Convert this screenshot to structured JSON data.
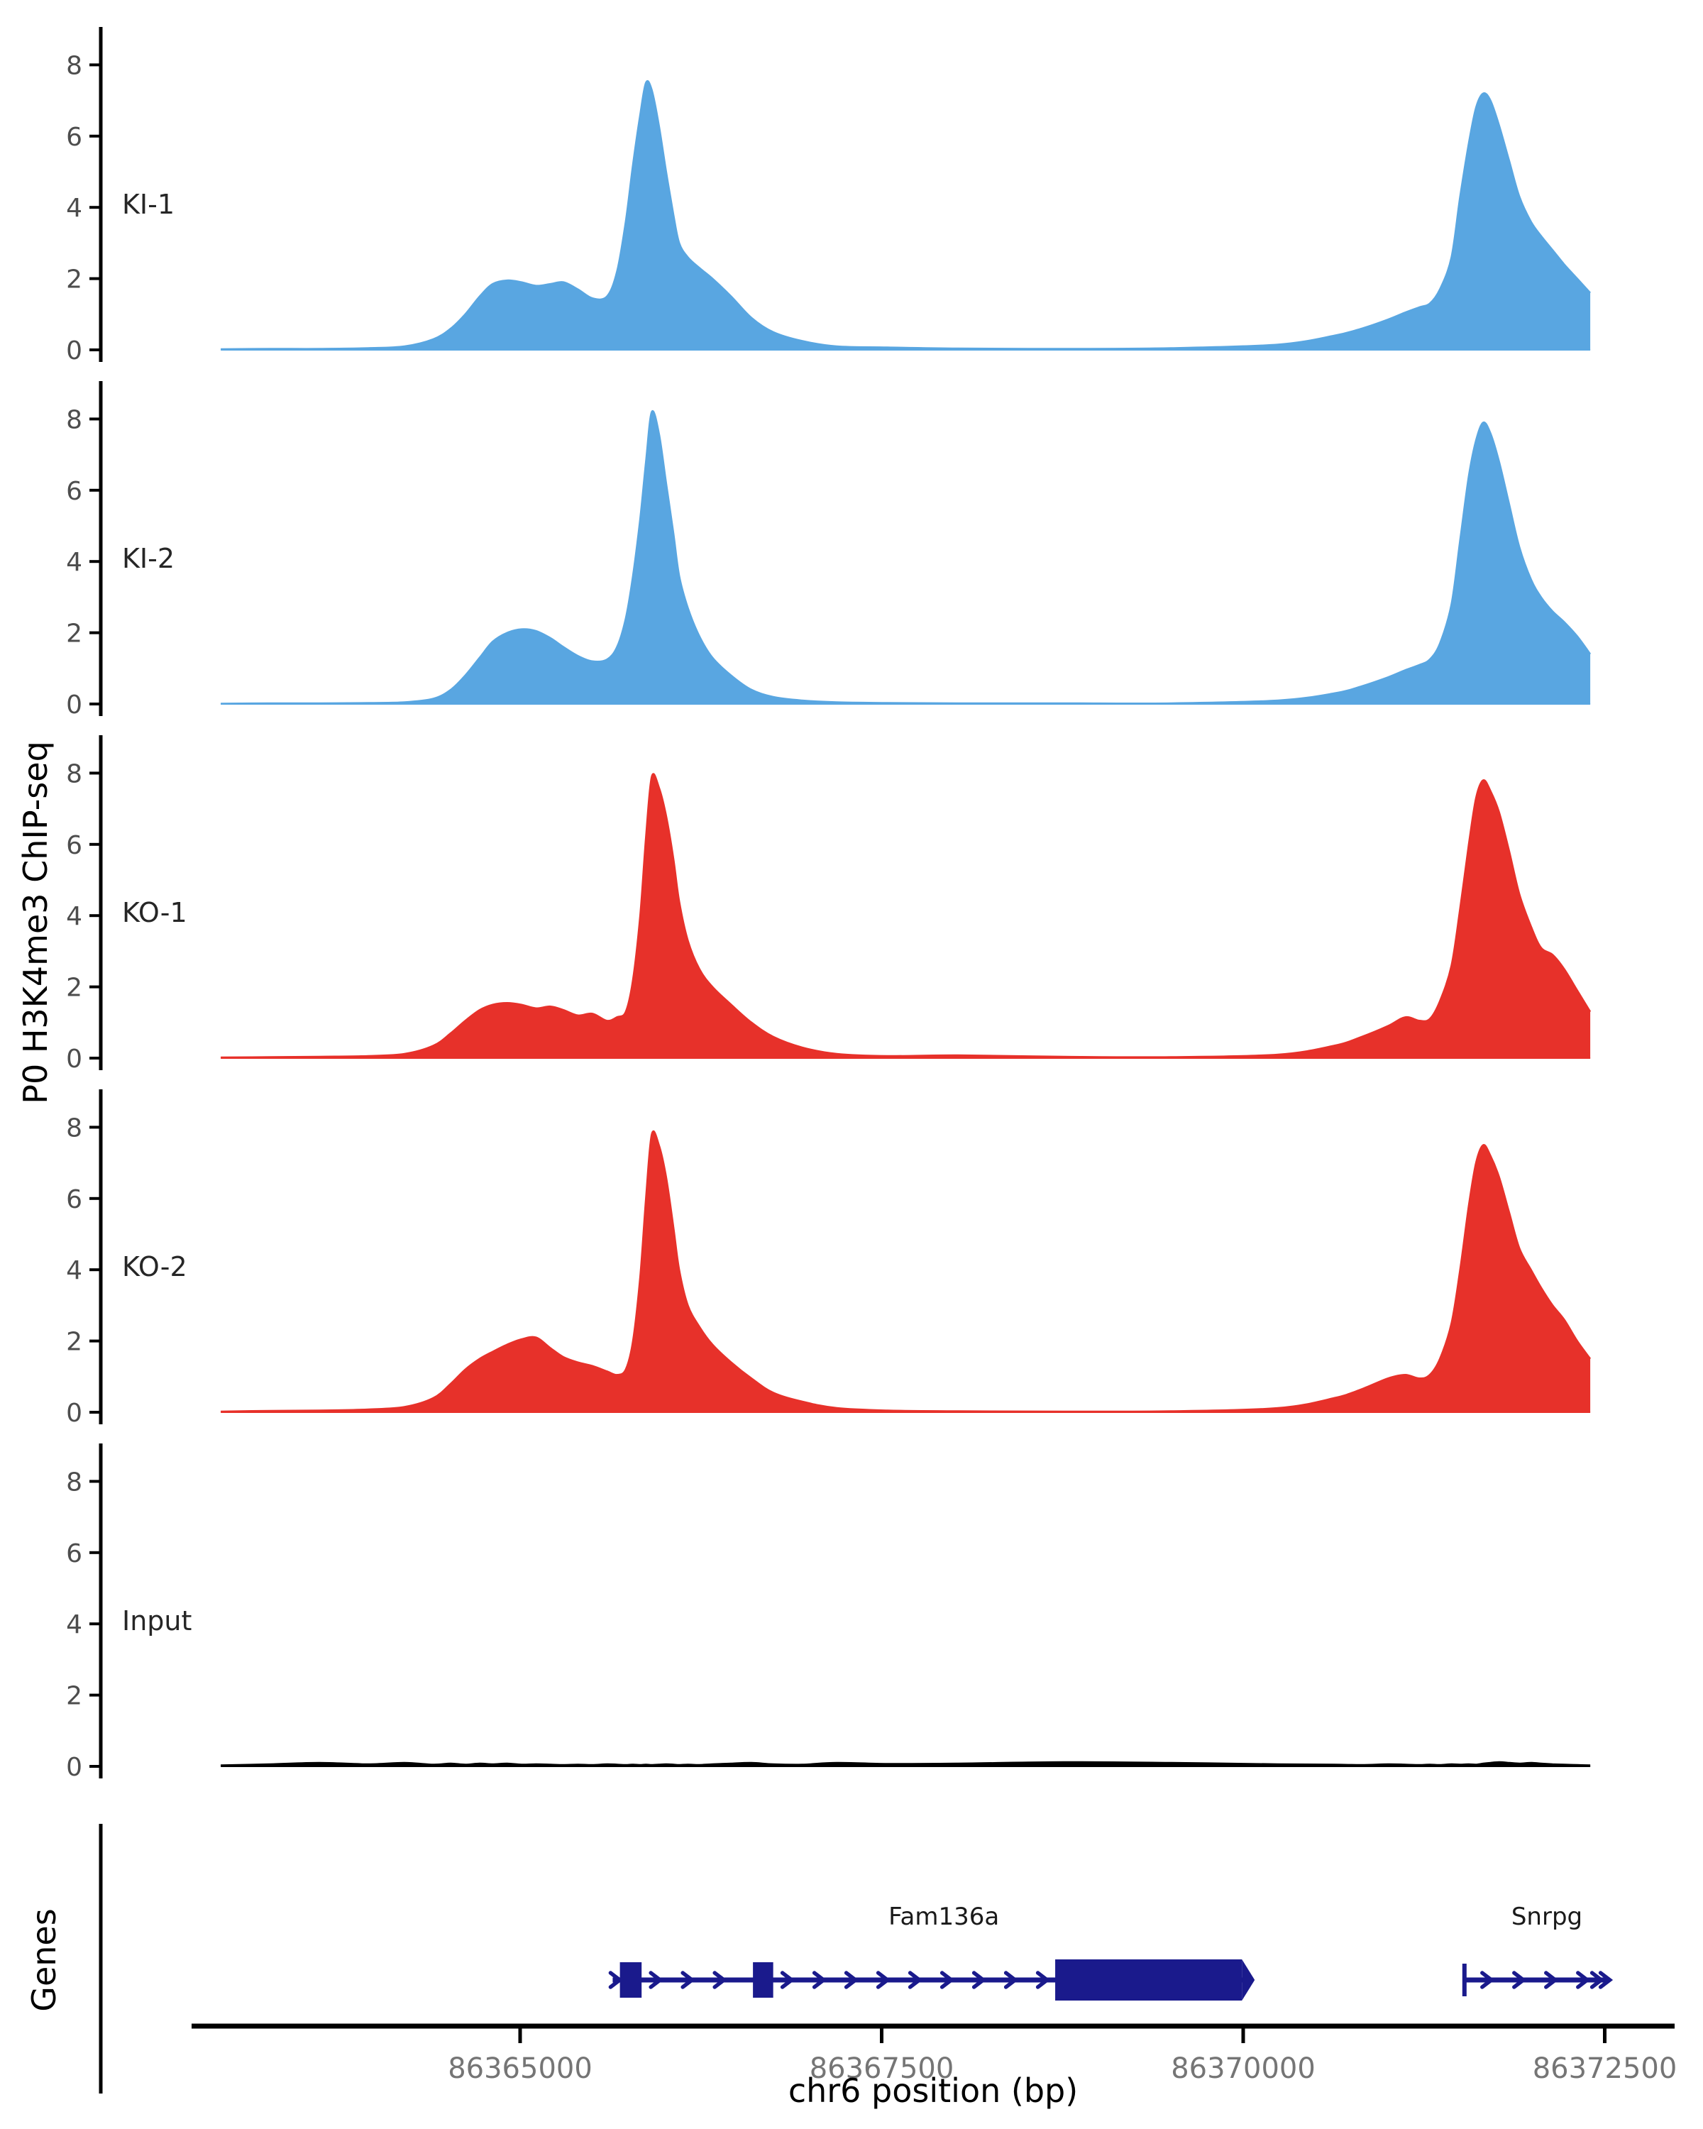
{
  "chart_data": {
    "type": "area",
    "title": "",
    "xlabel": "chr6 position (bp)",
    "ylabel": "P0 H3K4me3 ChIP-seq",
    "legend": "none",
    "grid": false,
    "x_domain": [
      86362930,
      86372400
    ],
    "ylim": [
      0,
      9
    ],
    "y_ticks": [
      0,
      2,
      4,
      6,
      8
    ],
    "x_ticks": [
      86365000,
      86367500,
      86370000,
      86372500
    ],
    "x_tick_labels": [
      "86365000",
      "86367500",
      "86370000",
      "86372500"
    ],
    "x": [
      86362930,
      86363270,
      86363610,
      86363950,
      86364200,
      86364400,
      86364520,
      86364620,
      86364720,
      86364810,
      86364910,
      86365010,
      86365110,
      86365210,
      86365300,
      86365400,
      86365500,
      86365600,
      86365670,
      86365730,
      86365780,
      86365830,
      86365870,
      86365910,
      86365960,
      86366010,
      86366060,
      86366100,
      86366160,
      86366240,
      86366330,
      86366460,
      86366600,
      86366750,
      86366950,
      86367190,
      86367540,
      86368030,
      86368760,
      86369500,
      86370240,
      86370630,
      86370820,
      86371000,
      86371120,
      86371220,
      86371290,
      86371360,
      86371440,
      86371500,
      86371560,
      86371610,
      86371660,
      86371710,
      86371770,
      86371840,
      86371910,
      86371990,
      86372060,
      86372140,
      86372220,
      86372310,
      86372400
    ],
    "series": [
      {
        "name": "KI-1",
        "color": "#59A6E1",
        "values": [
          0.02,
          0.03,
          0.03,
          0.05,
          0.1,
          0.3,
          0.6,
          1.0,
          1.5,
          1.85,
          1.95,
          1.9,
          1.8,
          1.85,
          1.9,
          1.7,
          1.45,
          1.5,
          2.2,
          3.6,
          5.2,
          6.6,
          7.5,
          7.3,
          6.3,
          5.0,
          3.8,
          3.0,
          2.6,
          2.3,
          2.0,
          1.5,
          0.9,
          0.5,
          0.25,
          0.1,
          0.07,
          0.04,
          0.03,
          0.05,
          0.15,
          0.4,
          0.6,
          0.85,
          1.05,
          1.2,
          1.3,
          1.7,
          2.6,
          4.3,
          5.8,
          6.8,
          7.2,
          7.0,
          6.3,
          5.3,
          4.3,
          3.6,
          3.2,
          2.8,
          2.4,
          2.0,
          1.6
        ]
      },
      {
        "name": "KI-2",
        "color": "#59A6E1",
        "values": [
          0.01,
          0.02,
          0.02,
          0.03,
          0.05,
          0.15,
          0.4,
          0.8,
          1.3,
          1.75,
          2.0,
          2.1,
          2.05,
          1.85,
          1.6,
          1.35,
          1.2,
          1.25,
          1.6,
          2.4,
          3.6,
          5.2,
          6.8,
          8.2,
          7.6,
          6.2,
          4.8,
          3.6,
          2.7,
          1.9,
          1.3,
          0.8,
          0.4,
          0.2,
          0.1,
          0.05,
          0.03,
          0.02,
          0.02,
          0.02,
          0.1,
          0.3,
          0.5,
          0.75,
          0.95,
          1.1,
          1.25,
          1.7,
          2.8,
          4.6,
          6.4,
          7.4,
          7.9,
          7.6,
          6.8,
          5.6,
          4.4,
          3.5,
          3.0,
          2.6,
          2.3,
          1.9,
          1.4
        ]
      },
      {
        "name": "KO-1",
        "color": "#E7312A",
        "values": [
          0.02,
          0.03,
          0.04,
          0.06,
          0.12,
          0.35,
          0.7,
          1.05,
          1.35,
          1.5,
          1.55,
          1.5,
          1.4,
          1.45,
          1.35,
          1.2,
          1.25,
          1.05,
          1.15,
          1.3,
          2.2,
          4.0,
          6.2,
          7.9,
          7.6,
          6.8,
          5.6,
          4.4,
          3.3,
          2.5,
          2.0,
          1.5,
          1.0,
          0.6,
          0.3,
          0.12,
          0.06,
          0.08,
          0.04,
          0.03,
          0.1,
          0.35,
          0.6,
          0.9,
          1.15,
          1.05,
          1.1,
          1.6,
          2.6,
          4.2,
          6.0,
          7.3,
          7.8,
          7.5,
          6.9,
          5.8,
          4.6,
          3.7,
          3.1,
          2.9,
          2.5,
          1.9,
          1.3
        ]
      },
      {
        "name": "KO-2",
        "color": "#E7312A",
        "values": [
          0.02,
          0.04,
          0.05,
          0.08,
          0.15,
          0.4,
          0.8,
          1.2,
          1.5,
          1.7,
          1.9,
          2.05,
          2.1,
          1.8,
          1.55,
          1.4,
          1.3,
          1.15,
          1.05,
          1.2,
          2.0,
          3.8,
          6.0,
          7.8,
          7.5,
          6.6,
          5.2,
          4.0,
          3.0,
          2.4,
          1.9,
          1.4,
          0.95,
          0.55,
          0.3,
          0.12,
          0.05,
          0.03,
          0.02,
          0.03,
          0.12,
          0.4,
          0.65,
          0.95,
          1.05,
          0.95,
          1.05,
          1.5,
          2.5,
          4.0,
          5.8,
          7.0,
          7.5,
          7.2,
          6.6,
          5.6,
          4.6,
          4.0,
          3.5,
          3.0,
          2.6,
          2.0,
          1.5
        ]
      },
      {
        "name": "Input",
        "color": "#000000",
        "values": [
          0.03,
          0.06,
          0.1,
          0.06,
          0.1,
          0.05,
          0.08,
          0.05,
          0.08,
          0.06,
          0.08,
          0.05,
          0.06,
          0.05,
          0.04,
          0.05,
          0.04,
          0.06,
          0.05,
          0.04,
          0.05,
          0.04,
          0.05,
          0.04,
          0.05,
          0.06,
          0.05,
          0.04,
          0.05,
          0.04,
          0.06,
          0.08,
          0.1,
          0.06,
          0.05,
          0.1,
          0.07,
          0.08,
          0.12,
          0.1,
          0.06,
          0.05,
          0.04,
          0.06,
          0.05,
          0.04,
          0.05,
          0.04,
          0.06,
          0.05,
          0.06,
          0.05,
          0.08,
          0.1,
          0.12,
          0.1,
          0.08,
          0.1,
          0.08,
          0.06,
          0.05,
          0.04,
          0.03
        ]
      }
    ],
    "genes": {
      "panel_label": "Genes",
      "color": "#1A1A8C",
      "items": [
        {
          "name": "Fam136a",
          "strand": "+",
          "start": 86365640,
          "end": 86370060,
          "exons": [
            [
              86365690,
              86365840
            ],
            [
              86366610,
              86366750
            ],
            [
              86368700,
              86370060
            ]
          ],
          "big_exon_index": 2,
          "start_marker": "chevron",
          "end_marker": "pointed-exon",
          "label_center": 86367930
        },
        {
          "name": "Snrpg",
          "strand": "+",
          "start": 86371530,
          "end": 86372530,
          "exons": [],
          "start_marker": "bar",
          "end_marker": "double-chevron",
          "label_center": 86372100
        }
      ]
    }
  }
}
